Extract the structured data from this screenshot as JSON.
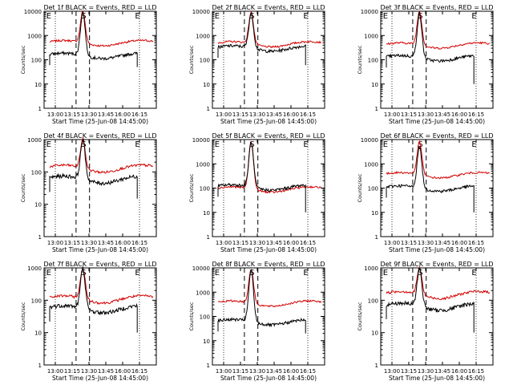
{
  "figure": {
    "xlabel": "Start Time (25-Jun-08 14:45:00)",
    "ylabel": "Counts/sec",
    "xticks": [
      "13:00",
      "13:15",
      "13:30",
      "13:45",
      "16:00",
      "16:15"
    ],
    "yscale": "log",
    "legend_colors": {
      "events": "#000000",
      "lld": "#d40000"
    },
    "markers": [
      "E",
      "S",
      "E"
    ]
  },
  "chart_data": [
    {
      "type": "line",
      "title": "Det 1f BLACK = Events, RED = LLD",
      "ylim": [
        1,
        10000
      ],
      "yticks": [
        "1",
        "10",
        "100",
        "1000",
        "10000"
      ],
      "lld_base": 500,
      "lld_peak": 10000,
      "events_base": 150,
      "events_peak": 9000,
      "events_end": 50
    },
    {
      "type": "line",
      "title": "Det 2f BLACK = Events, RED = LLD",
      "ylim": [
        1,
        10000
      ],
      "yticks": [
        "1",
        "10",
        "100",
        "1000",
        "10000"
      ],
      "lld_base": 450,
      "lld_peak": 9000,
      "events_base": 300,
      "events_peak": 8000,
      "events_end": 60
    },
    {
      "type": "line",
      "title": "Det 3f BLACK = Events, RED = LLD",
      "ylim": [
        1,
        10000
      ],
      "yticks": [
        "1",
        "10",
        "100",
        "1000",
        "10000"
      ],
      "lld_base": 400,
      "lld_peak": 10000,
      "events_base": 120,
      "events_peak": 8000,
      "events_end": 10
    },
    {
      "type": "line",
      "title": "Det 4f BLACK = Events, RED = LLD",
      "ylim": [
        1,
        1000
      ],
      "yticks": [
        "1",
        "10",
        "100",
        "1000"
      ],
      "lld_base": 130,
      "lld_peak": 1000,
      "events_base": 60,
      "events_peak": 1000,
      "events_end": 15
    },
    {
      "type": "line",
      "title": "Det 5f BLACK = Events, RED = LLD",
      "ylim": [
        1,
        10000
      ],
      "yticks": [
        "1",
        "10",
        "100",
        "1000",
        "10000"
      ],
      "lld_base": 90,
      "lld_peak": 8000,
      "events_base": 110,
      "events_peak": 8000,
      "events_end": 10
    },
    {
      "type": "line",
      "title": "Det 6f BLACK = Events, RED = LLD",
      "ylim": [
        1,
        10000
      ],
      "yticks": [
        "1",
        "10",
        "100",
        "1000",
        "10000"
      ],
      "lld_base": 350,
      "lld_peak": 8000,
      "events_base": 100,
      "events_peak": 5000,
      "events_end": 10
    },
    {
      "type": "line",
      "title": "Det 7f BLACK = Events, RED = LLD",
      "ylim": [
        1,
        1000
      ],
      "yticks": [
        "1",
        "10",
        "100",
        "1000"
      ],
      "lld_base": 110,
      "lld_peak": 1000,
      "events_base": 55,
      "events_peak": 1000,
      "events_end": 10
    },
    {
      "type": "line",
      "title": "Det 8f BLACK = Events, RED = LLD",
      "ylim": [
        1,
        10000
      ],
      "yticks": [
        "1",
        "10",
        "100",
        "1000",
        "10000"
      ],
      "lld_base": 350,
      "lld_peak": 9000,
      "events_base": 60,
      "events_peak": 8000,
      "events_end": 20
    },
    {
      "type": "line",
      "title": "Det 9f BLACK = Events, RED = LLD",
      "ylim": [
        1,
        1000
      ],
      "yticks": [
        "1",
        "10",
        "100",
        "1000"
      ],
      "lld_base": 150,
      "lld_peak": 1000,
      "events_base": 65,
      "events_peak": 1000,
      "events_end": 10
    }
  ]
}
